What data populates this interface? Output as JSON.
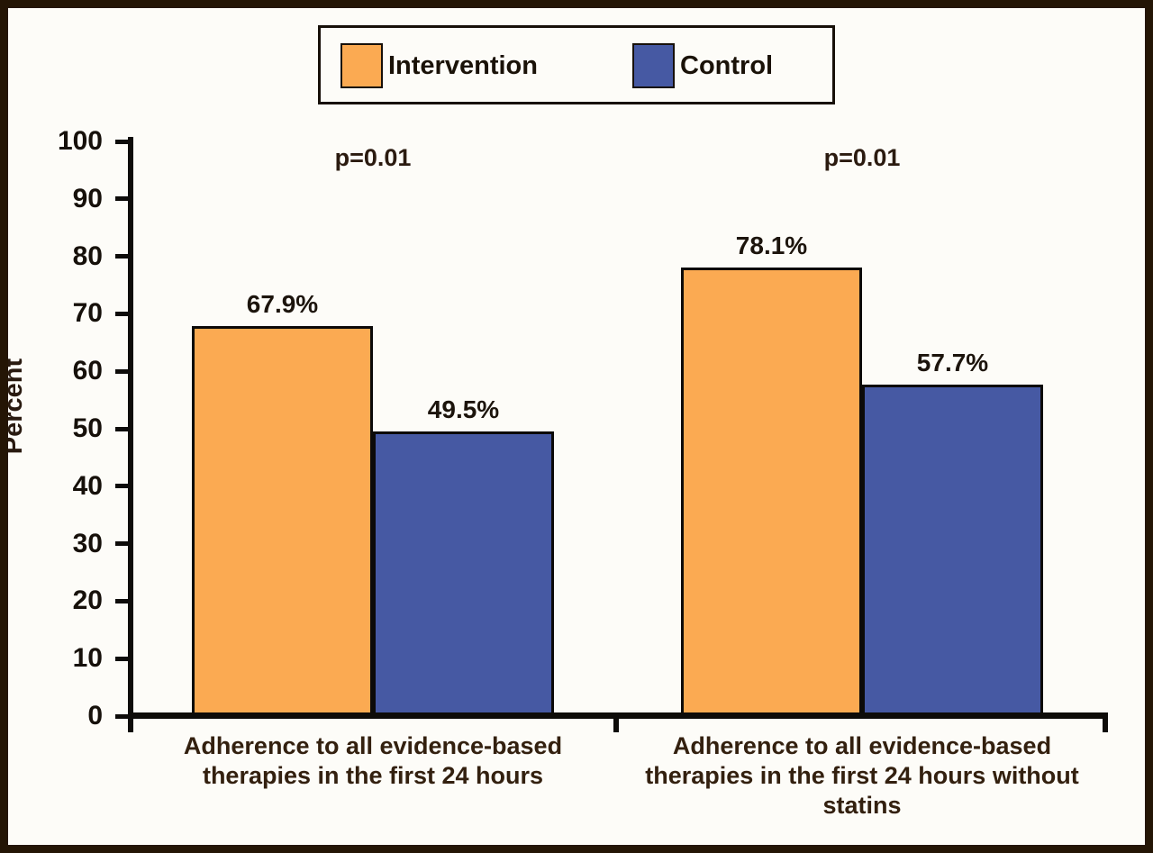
{
  "figure": {
    "background": "#FDFCF8",
    "frame_color": "#241505"
  },
  "legend": {
    "items": [
      {
        "label": "Intervention",
        "color": "#FBAA52"
      },
      {
        "label": "Control",
        "color": "#4659A3"
      }
    ]
  },
  "chart_data": {
    "type": "bar",
    "title": "",
    "xlabel": "",
    "ylabel": "Percent",
    "ylim": [
      0,
      100
    ],
    "ytick_step": 10,
    "yticks": [
      0,
      10,
      20,
      30,
      40,
      50,
      60,
      70,
      80,
      90,
      100
    ],
    "grid": false,
    "legend_position": "top",
    "categories": [
      "Adherence to all evidence-based therapies in the first 24 hours",
      "Adherence to all evidence-based therapies in the first 24 hours without statins"
    ],
    "series": [
      {
        "name": "Intervention",
        "color": "#FBAA52",
        "values": [
          67.9,
          78.1
        ],
        "labels": [
          "67.9%",
          "78.1%"
        ]
      },
      {
        "name": "Control",
        "color": "#4659A3",
        "values": [
          49.5,
          57.7
        ],
        "labels": [
          "49.5%",
          "57.7%"
        ]
      }
    ],
    "annotations": [
      {
        "text": "p=0.01",
        "group_index": 0
      },
      {
        "text": "p=0.01",
        "group_index": 1
      }
    ]
  },
  "colors": {
    "bar_border": "#0C0A08",
    "axis": "#0E0C0A",
    "tick_text": "#16100A",
    "value_text": "#1C140C",
    "annotation_text": "#2B1B10",
    "category_text": "#33200F",
    "legend_text": "#1A1208"
  }
}
